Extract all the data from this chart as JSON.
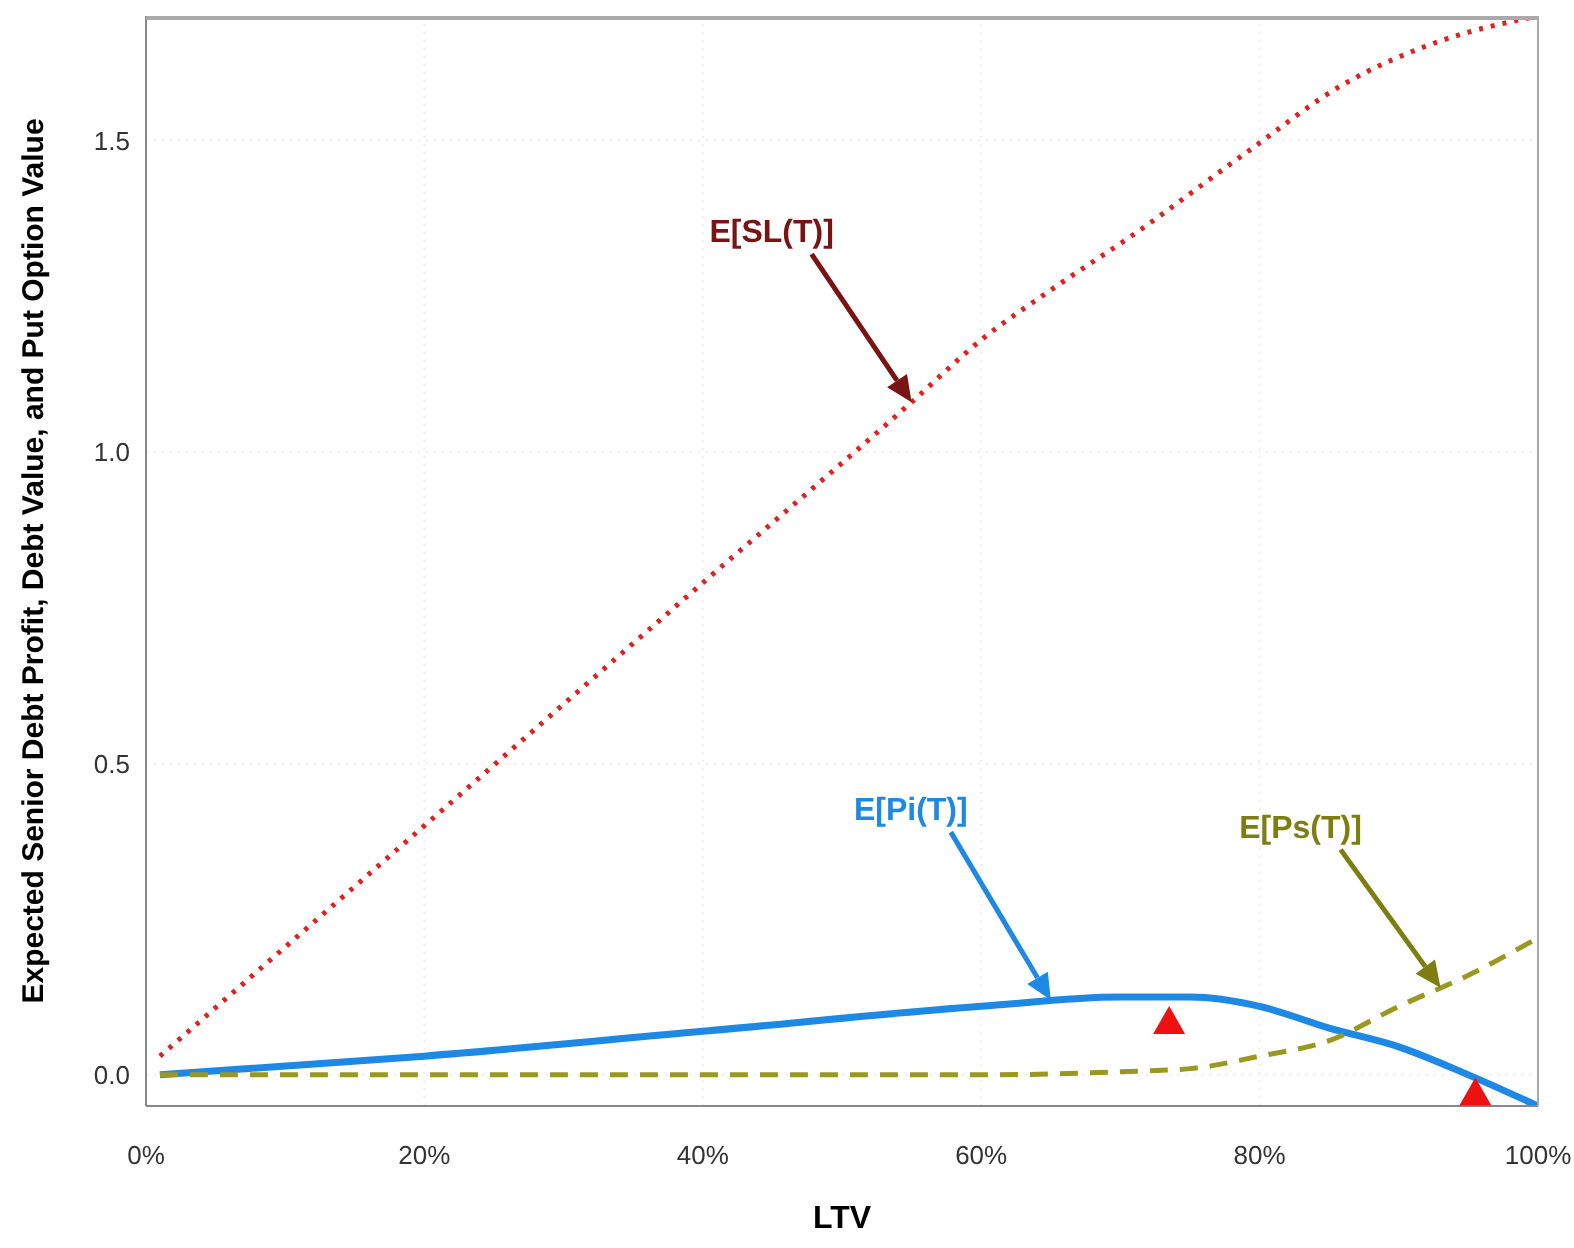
{
  "chart_data": {
    "type": "line",
    "xlabel": "LTV",
    "ylabel": "Expected Senior Debt Profit, Debt Value, and Put Option Value",
    "xlim": [
      0,
      1
    ],
    "xticks": [
      {
        "value": 0,
        "label": "0%"
      },
      {
        "value": 0.2,
        "label": "20%"
      },
      {
        "value": 0.4,
        "label": "40%"
      },
      {
        "value": 0.6,
        "label": "60%"
      },
      {
        "value": 0.8,
        "label": "80%"
      },
      {
        "value": 1,
        "label": "100%"
      }
    ],
    "ylim": [
      -0.05,
      1.7
    ],
    "yticks": [
      {
        "value": 0,
        "label": "0.0"
      },
      {
        "value": 0.5,
        "label": "0.5"
      },
      {
        "value": 1,
        "label": "1.0"
      },
      {
        "value": 1.5,
        "label": "1.5"
      }
    ],
    "grid": true,
    "series": [
      {
        "line_style": "dotted",
        "color": "#dd2222",
        "x": [
          0.01,
          0.2,
          0.4,
          0.55,
          0.6,
          0.65,
          0.71,
          0.79,
          0.86,
          0.93,
          1.0
        ],
        "values": [
          0.03,
          0.4,
          0.79,
          1.08,
          1.18,
          1.26,
          1.35,
          1.48,
          1.59,
          1.66,
          1.7
        ]
      },
      {
        "line_style": "solid",
        "color": "#1e88e5",
        "x": [
          0.01,
          0.2,
          0.4,
          0.6,
          0.7,
          0.75,
          0.8,
          0.85,
          0.9,
          0.95,
          1.0
        ],
        "values": [
          0.0,
          0.03,
          0.07,
          0.11,
          0.125,
          0.125,
          0.11,
          0.075,
          0.045,
          0.0,
          -0.05
        ]
      },
      {
        "line_style": "dashed",
        "color": "#999922",
        "x": [
          0.01,
          0.2,
          0.4,
          0.6,
          0.7,
          0.75,
          0.8,
          0.85,
          0.9,
          0.95,
          1.0
        ],
        "values": [
          0.0,
          0.0,
          0.0,
          0.0,
          0.005,
          0.01,
          0.03,
          0.055,
          0.11,
          0.16,
          0.22
        ]
      },
      {
        "type": "scatter",
        "marker": "triangle",
        "color": "#ee1111",
        "x": [
          0.735
        ],
        "values": [
          0.085
        ]
      },
      {
        "type": "scatter",
        "marker": "triangle",
        "color": "#ee1111",
        "x": [
          0.955
        ],
        "values": [
          -0.03
        ]
      }
    ],
    "annotations": [
      "E[SL(T)]",
      "E[Pi(T)]",
      "E[Ps(T)]"
    ]
  }
}
